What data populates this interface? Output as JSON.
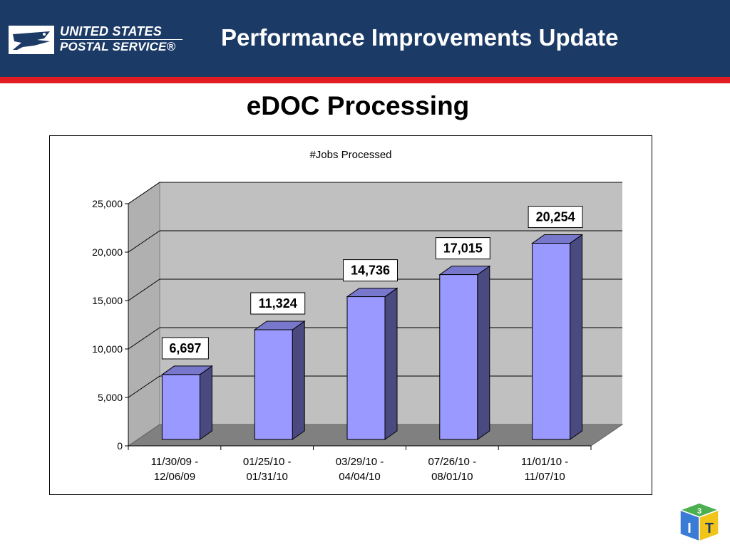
{
  "header": {
    "logo_line1": "UNITED STATES",
    "logo_line2": "POSTAL SERVICE®",
    "title": "Performance Improvements Update",
    "colors": {
      "navy": "#1b3a66",
      "red": "#e31b23"
    }
  },
  "page_title": "eDOC Processing",
  "chart_data": {
    "type": "bar",
    "title": "#Jobs Processed",
    "categories": [
      [
        "11/30/09 -",
        "12/06/09"
      ],
      [
        "01/25/10 -",
        "01/31/10"
      ],
      [
        "03/29/10 -",
        "04/04/10"
      ],
      [
        "07/26/10 -",
        "08/01/10"
      ],
      [
        "11/01/10 -",
        "11/07/10"
      ]
    ],
    "values": [
      6697,
      11324,
      14736,
      17015,
      20254
    ],
    "data_labels": [
      "6,697",
      "11,324",
      "14,736",
      "17,015",
      "20,254"
    ],
    "ylim": [
      0,
      25000
    ],
    "yticks": [
      0,
      5000,
      10000,
      15000,
      20000,
      25000
    ],
    "ytick_labels": [
      "0",
      "5,000",
      "10,000",
      "15,000",
      "20,000",
      "25,000"
    ],
    "grid": true,
    "style": "3d",
    "colors": {
      "bar_front": "#9999ff",
      "bar_side": "#4a4a80",
      "bar_top": "#7777cc",
      "wall": "#c0c0c0",
      "floor": "#808080"
    }
  },
  "badge": {
    "number": "3",
    "letters": [
      "I",
      "T"
    ]
  }
}
